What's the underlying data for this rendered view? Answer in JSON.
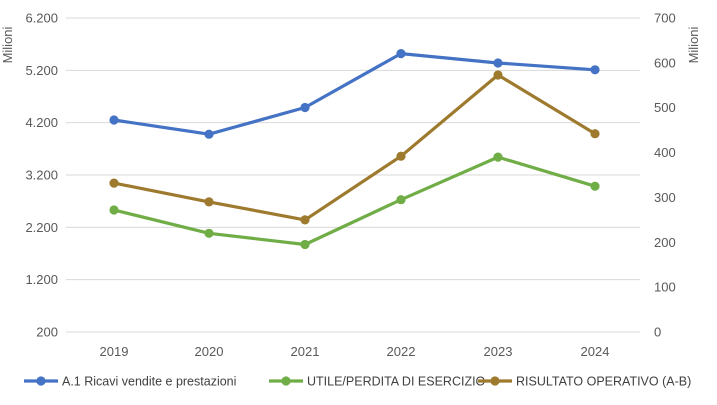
{
  "chart_data": {
    "type": "line",
    "categories": [
      "2019",
      "2020",
      "2021",
      "2022",
      "2023",
      "2024"
    ],
    "y_left": {
      "label": "Milioni",
      "ticks": [
        200,
        1200,
        2200,
        3200,
        4200,
        5200,
        6200
      ],
      "tick_labels": [
        "200",
        "1.200",
        "2.200",
        "3.200",
        "4.200",
        "5.200",
        "6.200"
      ],
      "range": [
        200,
        6200
      ]
    },
    "y_right": {
      "label": "Milioni",
      "ticks": [
        0,
        100,
        200,
        300,
        400,
        500,
        600,
        700
      ],
      "tick_labels": [
        "0",
        "100",
        "200",
        "300",
        "400",
        "500",
        "600",
        "700"
      ],
      "range": [
        0,
        700
      ]
    },
    "series": [
      {
        "name": "A.1 Ricavi vendite e prestazioni",
        "axis": "left",
        "color": "#4472C4",
        "values": [
          4250,
          3980,
          4490,
          5520,
          5340,
          5210
        ]
      },
      {
        "name": "UTILE/PERDITA DI ESERCIZIO",
        "axis": "right",
        "color": "#70AD47",
        "values": [
          272,
          220,
          195,
          295,
          390,
          325
        ]
      },
      {
        "name": "RISULTATO OPERATIVO (A-B)",
        "axis": "right",
        "color": "#9E7A2E",
        "values": [
          332,
          290,
          250,
          392,
          573,
          442
        ]
      }
    ],
    "grid": true,
    "legend_position": "bottom"
  }
}
